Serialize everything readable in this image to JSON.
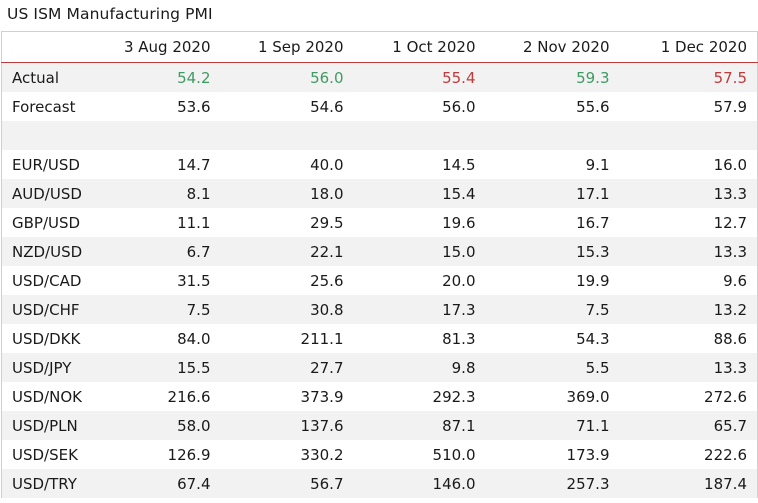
{
  "title": "US ISM Manufacturing PMI",
  "columns": [
    "3 Aug 2020",
    "1 Sep 2020",
    "1 Oct 2020",
    "2 Nov 2020",
    "1 Dec 2020"
  ],
  "colors": {
    "up": "#3f9b62",
    "down": "#c0393b"
  },
  "rows": [
    {
      "label": "Actual",
      "values": [
        "54.2",
        "56.0",
        "55.4",
        "59.3",
        "57.5"
      ],
      "value_colors": [
        "green",
        "green",
        "red",
        "green",
        "red"
      ]
    },
    {
      "label": "Forecast",
      "values": [
        "53.6",
        "54.6",
        "56.0",
        "55.6",
        "57.9"
      ]
    },
    {
      "label": "",
      "values": [
        "",
        "",
        "",
        "",
        ""
      ]
    },
    {
      "label": "EUR/USD",
      "values": [
        "14.7",
        "40.0",
        "14.5",
        "9.1",
        "16.0"
      ]
    },
    {
      "label": "AUD/USD",
      "values": [
        "8.1",
        "18.0",
        "15.4",
        "17.1",
        "13.3"
      ]
    },
    {
      "label": "GBP/USD",
      "values": [
        "11.1",
        "29.5",
        "19.6",
        "16.7",
        "12.7"
      ]
    },
    {
      "label": "NZD/USD",
      "values": [
        "6.7",
        "22.1",
        "15.0",
        "15.3",
        "13.3"
      ]
    },
    {
      "label": "USD/CAD",
      "values": [
        "31.5",
        "25.6",
        "20.0",
        "19.9",
        "9.6"
      ]
    },
    {
      "label": "USD/CHF",
      "values": [
        "7.5",
        "30.8",
        "17.3",
        "7.5",
        "13.2"
      ]
    },
    {
      "label": "USD/DKK",
      "values": [
        "84.0",
        "211.1",
        "81.3",
        "54.3",
        "88.6"
      ]
    },
    {
      "label": "USD/JPY",
      "values": [
        "15.5",
        "27.7",
        "9.8",
        "5.5",
        "13.3"
      ]
    },
    {
      "label": "USD/NOK",
      "values": [
        "216.6",
        "373.9",
        "292.3",
        "369.0",
        "272.6"
      ]
    },
    {
      "label": "USD/PLN",
      "values": [
        "58.0",
        "137.6",
        "87.1",
        "71.1",
        "65.7"
      ]
    },
    {
      "label": "USD/SEK",
      "values": [
        "126.9",
        "330.2",
        "510.0",
        "173.9",
        "222.6"
      ]
    },
    {
      "label": "USD/TRY",
      "values": [
        "67.4",
        "56.7",
        "146.0",
        "257.3",
        "187.4"
      ]
    }
  ]
}
